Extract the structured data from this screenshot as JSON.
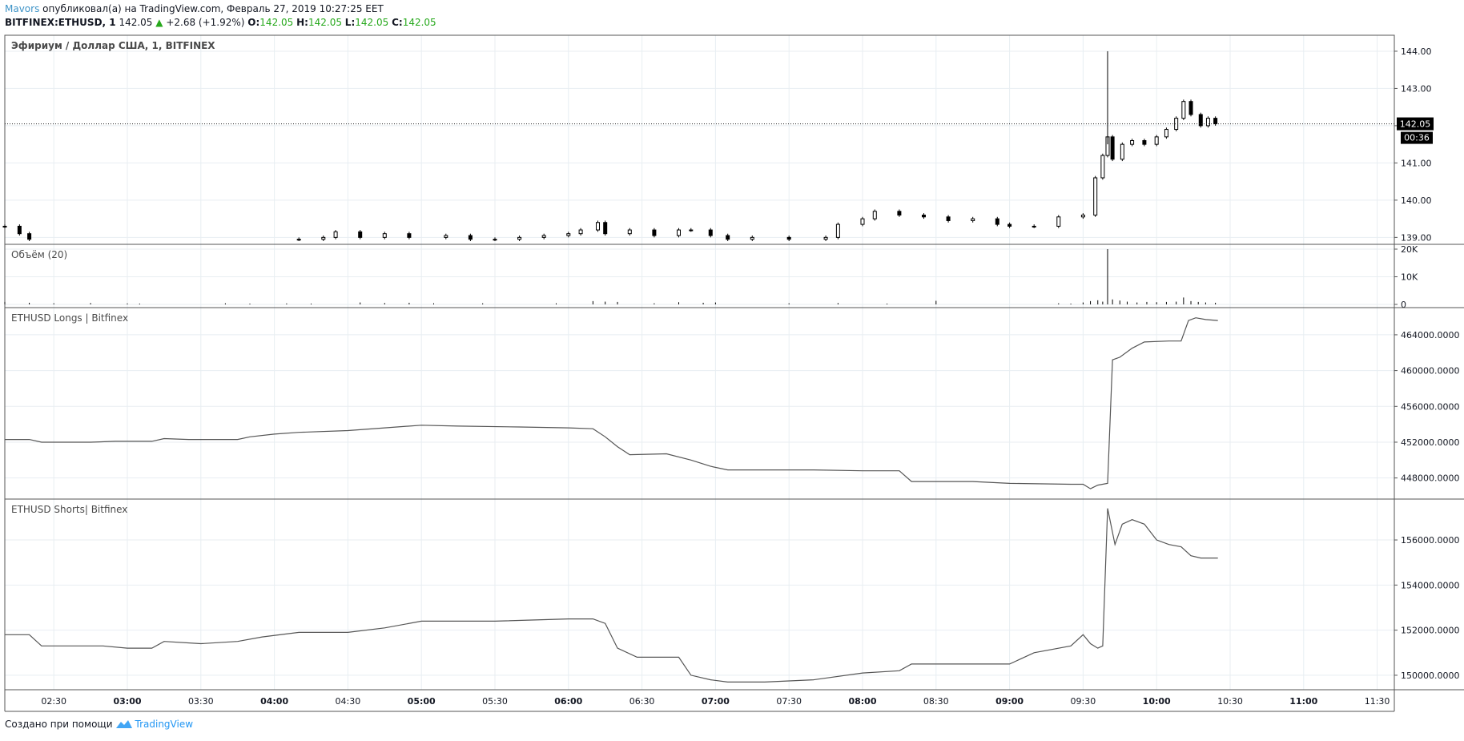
{
  "header": {
    "author": "Mavors",
    "published_text": "опубликовал(а) на TradingView.com, Февраль 27, 2019 10:27:25 EET",
    "symbol": "BITFINEX:ETHUSD, 1",
    "last": "142.05",
    "change": "+2.68 (+1.92%)",
    "o_label": "O:",
    "o": "142.05",
    "h_label": "H:",
    "h": "142.05",
    "l_label": "L:",
    "l": "142.05",
    "c_label": "C:",
    "c": "142.05"
  },
  "footer": {
    "text": "Создано при помощи",
    "brand": "TradingView"
  },
  "colors": {
    "accent": "#26a81b",
    "author": "#3d93c7",
    "brand": "#2196f3",
    "grid": "#e8eef2",
    "line": "#555555"
  },
  "chart_data": [
    {
      "type": "candlestick",
      "title": "Эфириум / Доллар США, 1, BITFINEX",
      "x_ticks": [
        "02:30",
        "03:00",
        "03:30",
        "04:00",
        "04:30",
        "05:00",
        "05:30",
        "06:00",
        "06:30",
        "07:00",
        "07:30",
        "08:00",
        "08:30",
        "09:00",
        "09:30",
        "10:00",
        "10:30",
        "11:00",
        "11:30"
      ],
      "x_ticks_bold": [
        "03:00",
        "04:00",
        "05:00",
        "06:00",
        "07:00",
        "08:00",
        "09:00",
        "10:00",
        "11:00"
      ],
      "y_ticks": [
        "144.00",
        "143.00",
        "142.00",
        "141.00",
        "140.00",
        "139.00"
      ],
      "ylim": [
        138.9,
        144.3
      ],
      "last_price_label": "142.05",
      "countdown_label": "00:36",
      "last_price": 142.05,
      "series": [
        {
          "t": "02:10",
          "price": 139.3
        },
        {
          "t": "02:16",
          "price": 139.1
        },
        {
          "t": "02:20",
          "price": 138.95
        },
        {
          "t": "04:10",
          "price": 138.95
        },
        {
          "t": "04:20",
          "price": 139.0
        },
        {
          "t": "04:25",
          "price": 139.15
        },
        {
          "t": "04:35",
          "price": 139.0
        },
        {
          "t": "04:45",
          "price": 139.1
        },
        {
          "t": "04:55",
          "price": 139.0
        },
        {
          "t": "05:10",
          "price": 139.05
        },
        {
          "t": "05:20",
          "price": 138.95
        },
        {
          "t": "05:30",
          "price": 138.95
        },
        {
          "t": "05:40",
          "price": 139.0
        },
        {
          "t": "05:50",
          "price": 139.05
        },
        {
          "t": "06:00",
          "price": 139.1
        },
        {
          "t": "06:05",
          "price": 139.2
        },
        {
          "t": "06:12",
          "price": 139.4
        },
        {
          "t": "06:15",
          "price": 139.1
        },
        {
          "t": "06:25",
          "price": 139.2
        },
        {
          "t": "06:35",
          "price": 139.05
        },
        {
          "t": "06:45",
          "price": 139.2
        },
        {
          "t": "06:50",
          "price": 139.2
        },
        {
          "t": "06:58",
          "price": 139.05
        },
        {
          "t": "07:05",
          "price": 138.95
        },
        {
          "t": "07:15",
          "price": 139.0
        },
        {
          "t": "07:30",
          "price": 138.95
        },
        {
          "t": "07:45",
          "price": 139.0
        },
        {
          "t": "07:50",
          "price": 139.35
        },
        {
          "t": "08:00",
          "price": 139.5
        },
        {
          "t": "08:05",
          "price": 139.7
        },
        {
          "t": "08:15",
          "price": 139.6
        },
        {
          "t": "08:25",
          "price": 139.55
        },
        {
          "t": "08:35",
          "price": 139.45
        },
        {
          "t": "08:45",
          "price": 139.5
        },
        {
          "t": "08:55",
          "price": 139.35
        },
        {
          "t": "09:00",
          "price": 139.3
        },
        {
          "t": "09:10",
          "price": 139.3
        },
        {
          "t": "09:20",
          "price": 139.55
        },
        {
          "t": "09:30",
          "price": 139.6
        },
        {
          "t": "09:35",
          "price": 140.6
        },
        {
          "t": "09:38",
          "price": 141.2
        },
        {
          "t": "09:40",
          "price": 141.7
        },
        {
          "t": "09:42",
          "price": 141.1
        },
        {
          "t": "09:46",
          "price": 141.5
        },
        {
          "t": "09:50",
          "price": 141.6
        },
        {
          "t": "09:55",
          "price": 141.5
        },
        {
          "t": "10:00",
          "price": 141.7
        },
        {
          "t": "10:04",
          "price": 141.9
        },
        {
          "t": "10:08",
          "price": 142.2
        },
        {
          "t": "10:11",
          "price": 142.65
        },
        {
          "t": "10:14",
          "price": 142.3
        },
        {
          "t": "10:18",
          "price": 142.0
        },
        {
          "t": "10:21",
          "price": 142.2
        },
        {
          "t": "10:24",
          "price": 142.05
        }
      ],
      "spike_high": {
        "t": "09:40",
        "price": 144.0
      }
    },
    {
      "type": "bar",
      "title": "Объём (20)",
      "y_ticks": [
        "20K",
        "10K",
        "0"
      ],
      "ylim": [
        0,
        20000
      ],
      "values": [
        {
          "t": "02:10",
          "v": 900
        },
        {
          "t": "02:20",
          "v": 600
        },
        {
          "t": "02:30",
          "v": 400
        },
        {
          "t": "02:45",
          "v": 500
        },
        {
          "t": "03:00",
          "v": 350
        },
        {
          "t": "03:05",
          "v": 300
        },
        {
          "t": "03:40",
          "v": 400
        },
        {
          "t": "03:50",
          "v": 300
        },
        {
          "t": "04:05",
          "v": 350
        },
        {
          "t": "04:15",
          "v": 300
        },
        {
          "t": "04:35",
          "v": 700
        },
        {
          "t": "04:45",
          "v": 500
        },
        {
          "t": "04:55",
          "v": 600
        },
        {
          "t": "05:05",
          "v": 400
        },
        {
          "t": "05:25",
          "v": 400
        },
        {
          "t": "05:55",
          "v": 400
        },
        {
          "t": "06:10",
          "v": 1200
        },
        {
          "t": "06:15",
          "v": 1000
        },
        {
          "t": "06:20",
          "v": 900
        },
        {
          "t": "06:35",
          "v": 400
        },
        {
          "t": "06:45",
          "v": 800
        },
        {
          "t": "06:55",
          "v": 600
        },
        {
          "t": "07:00",
          "v": 700
        },
        {
          "t": "07:30",
          "v": 400
        },
        {
          "t": "07:50",
          "v": 500
        },
        {
          "t": "08:10",
          "v": 300
        },
        {
          "t": "08:30",
          "v": 1300
        },
        {
          "t": "09:20",
          "v": 400
        },
        {
          "t": "09:25",
          "v": 300
        },
        {
          "t": "09:30",
          "v": 700
        },
        {
          "t": "09:33",
          "v": 1200
        },
        {
          "t": "09:36",
          "v": 1500
        },
        {
          "t": "09:38",
          "v": 1000
        },
        {
          "t": "09:40",
          "v": 20000
        },
        {
          "t": "09:42",
          "v": 1800
        },
        {
          "t": "09:45",
          "v": 1400
        },
        {
          "t": "09:48",
          "v": 1000
        },
        {
          "t": "09:52",
          "v": 700
        },
        {
          "t": "09:56",
          "v": 900
        },
        {
          "t": "10:00",
          "v": 800
        },
        {
          "t": "10:04",
          "v": 900
        },
        {
          "t": "10:08",
          "v": 1000
        },
        {
          "t": "10:11",
          "v": 2500
        },
        {
          "t": "10:14",
          "v": 1200
        },
        {
          "t": "10:17",
          "v": 900
        },
        {
          "t": "10:20",
          "v": 700
        },
        {
          "t": "10:24",
          "v": 600
        }
      ]
    },
    {
      "type": "line",
      "title": "ETHUSD Longs | Bitfinex",
      "y_ticks": [
        "464000.0000",
        "460000.0000",
        "456000.0000",
        "452000.0000",
        "448000.0000"
      ],
      "ylim": [
        446000,
        466500
      ],
      "points": [
        [
          "02:10",
          452300
        ],
        [
          "02:20",
          452300
        ],
        [
          "02:25",
          452000
        ],
        [
          "02:45",
          452000
        ],
        [
          "02:55",
          452100
        ],
        [
          "03:10",
          452100
        ],
        [
          "03:15",
          452400
        ],
        [
          "03:25",
          452300
        ],
        [
          "03:45",
          452300
        ],
        [
          "03:50",
          452600
        ],
        [
          "04:00",
          452900
        ],
        [
          "04:10",
          453100
        ],
        [
          "04:30",
          453300
        ],
        [
          "04:45",
          453600
        ],
        [
          "05:00",
          453900
        ],
        [
          "05:15",
          453800
        ],
        [
          "05:40",
          453700
        ],
        [
          "06:00",
          453600
        ],
        [
          "06:10",
          453500
        ],
        [
          "06:15",
          452600
        ],
        [
          "06:20",
          451500
        ],
        [
          "06:25",
          450600
        ],
        [
          "06:40",
          450700
        ],
        [
          "06:50",
          450000
        ],
        [
          "06:58",
          449300
        ],
        [
          "07:05",
          448900
        ],
        [
          "07:40",
          448900
        ],
        [
          "08:00",
          448800
        ],
        [
          "08:15",
          448800
        ],
        [
          "08:20",
          447600
        ],
        [
          "08:45",
          447600
        ],
        [
          "09:00",
          447400
        ],
        [
          "09:25",
          447300
        ],
        [
          "09:30",
          447300
        ],
        [
          "09:33",
          446800
        ],
        [
          "09:36",
          447200
        ],
        [
          "09:40",
          447400
        ],
        [
          "09:42",
          461200
        ],
        [
          "09:45",
          461500
        ],
        [
          "09:50",
          462500
        ],
        [
          "09:55",
          463200
        ],
        [
          "10:05",
          463300
        ],
        [
          "10:10",
          463300
        ],
        [
          "10:13",
          465600
        ],
        [
          "10:16",
          465900
        ],
        [
          "10:20",
          465700
        ],
        [
          "10:25",
          465600
        ]
      ]
    },
    {
      "type": "line",
      "title": "ETHUSD Shorts| Bitfinex",
      "y_ticks": [
        "156000.0000",
        "154000.0000",
        "152000.0000",
        "150000.0000"
      ],
      "ylim": [
        149500,
        157600
      ],
      "points": [
        [
          "02:10",
          151800
        ],
        [
          "02:20",
          151800
        ],
        [
          "02:25",
          151300
        ],
        [
          "02:50",
          151300
        ],
        [
          "03:00",
          151200
        ],
        [
          "03:10",
          151200
        ],
        [
          "03:15",
          151500
        ],
        [
          "03:30",
          151400
        ],
        [
          "03:45",
          151500
        ],
        [
          "03:55",
          151700
        ],
        [
          "04:10",
          151900
        ],
        [
          "04:30",
          151900
        ],
        [
          "04:45",
          152100
        ],
        [
          "05:00",
          152400
        ],
        [
          "05:30",
          152400
        ],
        [
          "06:00",
          152500
        ],
        [
          "06:10",
          152500
        ],
        [
          "06:15",
          152300
        ],
        [
          "06:20",
          151200
        ],
        [
          "06:28",
          150800
        ],
        [
          "06:45",
          150800
        ],
        [
          "06:50",
          150000
        ],
        [
          "06:58",
          149800
        ],
        [
          "07:05",
          149700
        ],
        [
          "07:20",
          149700
        ],
        [
          "07:40",
          149800
        ],
        [
          "08:00",
          150100
        ],
        [
          "08:15",
          150200
        ],
        [
          "08:20",
          150500
        ],
        [
          "08:40",
          150500
        ],
        [
          "09:00",
          150500
        ],
        [
          "09:10",
          151000
        ],
        [
          "09:25",
          151300
        ],
        [
          "09:30",
          151800
        ],
        [
          "09:33",
          151400
        ],
        [
          "09:36",
          151200
        ],
        [
          "09:38",
          151300
        ],
        [
          "09:40",
          157400
        ],
        [
          "09:43",
          155800
        ],
        [
          "09:46",
          156700
        ],
        [
          "09:50",
          156900
        ],
        [
          "09:55",
          156700
        ],
        [
          "10:00",
          156000
        ],
        [
          "10:05",
          155800
        ],
        [
          "10:10",
          155700
        ],
        [
          "10:14",
          155300
        ],
        [
          "10:18",
          155200
        ],
        [
          "10:25",
          155200
        ]
      ]
    }
  ]
}
